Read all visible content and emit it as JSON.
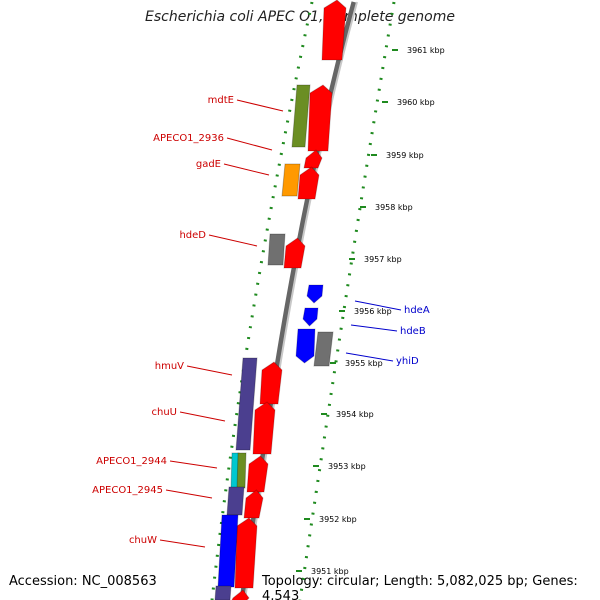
{
  "title": "Escherichia coli APEC O1, complete genome",
  "footer": {
    "accession": "Accession: NC_008563",
    "topology": "Topology: circular; Length: 5,082,025 bp; Genes: 4,543"
  },
  "colors": {
    "forward_gene": "#ff0000",
    "reverse_gene": "#0000ff",
    "label_left": "#cc0000",
    "label_right": "#0000cc",
    "scale_ticks": "#1f8a1f",
    "backbone": "#888888"
  },
  "scale": {
    "unit": "kbp",
    "labels": [
      "3961 kbp",
      "3960 kbp",
      "3959 kbp",
      "3958 kbp",
      "3957 kbp",
      "3956 kbp",
      "3955 kbp",
      "3954 kbp",
      "3953 kbp",
      "3952 kbp",
      "3951 kbp"
    ]
  },
  "left_labels": [
    "mdtE",
    "APECO1_2936",
    "gadE",
    "hdeD",
    "hmuV",
    "chuU",
    "APECO1_2944",
    "APECO1_2945",
    "chuW"
  ],
  "right_labels": [
    "hdeA",
    "hdeB",
    "yhiD"
  ]
}
